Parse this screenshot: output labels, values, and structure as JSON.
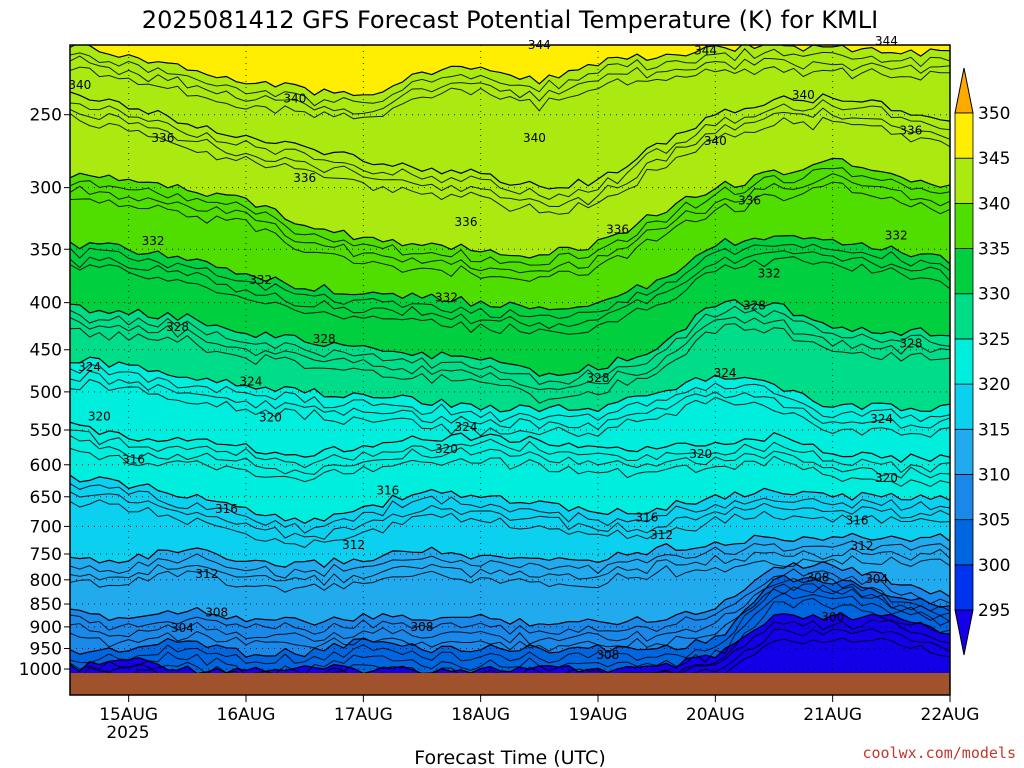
{
  "chart_data": {
    "type": "heatmap",
    "title": "2025081412 GFS Forecast Potential Temperature (K) for KMLI",
    "xlabel": "Forecast Time (UTC)",
    "ylabel": "",
    "y_scale": "log-pressure",
    "y_axis": {
      "ticks": [
        250,
        300,
        350,
        400,
        450,
        500,
        550,
        600,
        650,
        700,
        750,
        800,
        850,
        900,
        950,
        1000
      ],
      "range": [
        210,
        1010
      ],
      "inverted": true
    },
    "x_axis": {
      "ticks": [
        "15AUG",
        "16AUG",
        "17AUG",
        "18AUG",
        "19AUG",
        "20AUG",
        "21AUG",
        "22AUG"
      ],
      "year_label": "2025",
      "range_hours": [
        -12,
        168
      ]
    },
    "colorbar": {
      "labels": [
        295,
        300,
        305,
        310,
        315,
        320,
        325,
        330,
        335,
        340,
        345,
        350
      ],
      "colors": [
        "#1400e8",
        "#0033ee",
        "#0066e0",
        "#1a88e8",
        "#22aaee",
        "#0cd0f0",
        "#00eedd",
        "#00dd88",
        "#00d040",
        "#50dd00",
        "#aaea10",
        "#ffee00",
        "#ffaa00"
      ]
    },
    "times_hours": [
      -12,
      0,
      12,
      24,
      36,
      48,
      60,
      72,
      84,
      96,
      108,
      120,
      132,
      144,
      156,
      168
    ],
    "contour_levels": [
      300,
      304,
      308,
      312,
      316,
      320,
      324,
      328,
      332,
      336,
      340,
      344
    ],
    "contour_pressure_hpa": {
      "300": [
        1000,
        975,
        1000,
        1000,
        1000,
        1000,
        1000,
        1000,
        1000,
        1000,
        1000,
        970,
        880,
        880,
        880,
        910
      ],
      "304": [
        960,
        950,
        930,
        960,
        960,
        930,
        950,
        950,
        950,
        950,
        950,
        930,
        800,
        800,
        830,
        860
      ],
      "308": [
        870,
        880,
        860,
        880,
        890,
        880,
        880,
        880,
        890,
        890,
        880,
        860,
        770,
        770,
        800,
        830
      ],
      "312": [
        760,
        760,
        740,
        770,
        770,
        760,
        740,
        760,
        760,
        760,
        740,
        730,
        720,
        720,
        720,
        720
      ],
      "316": [
        620,
        630,
        650,
        670,
        690,
        670,
        640,
        650,
        660,
        680,
        670,
        650,
        640,
        650,
        650,
        650
      ],
      "320": [
        545,
        560,
        560,
        575,
        585,
        570,
        560,
        560,
        565,
        575,
        580,
        565,
        560,
        580,
        590,
        590
      ],
      "324": [
        460,
        470,
        480,
        490,
        500,
        505,
        510,
        520,
        520,
        520,
        500,
        480,
        490,
        520,
        520,
        520
      ],
      "328": [
        405,
        410,
        415,
        430,
        440,
        450,
        455,
        460,
        480,
        470,
        450,
        400,
        400,
        430,
        430,
        430
      ],
      "332": [
        345,
        350,
        360,
        370,
        385,
        390,
        395,
        400,
        405,
        400,
        380,
        345,
        340,
        345,
        350,
        360
      ],
      "336": [
        290,
        295,
        300,
        310,
        330,
        340,
        345,
        350,
        355,
        345,
        320,
        300,
        290,
        280,
        290,
        300
      ],
      "340": [
        235,
        245,
        255,
        265,
        270,
        280,
        285,
        290,
        300,
        295,
        270,
        250,
        240,
        240,
        245,
        255
      ],
      "344": [
        210,
        215,
        222,
        230,
        235,
        238,
        225,
        220,
        230,
        220,
        215,
        212,
        210,
        212,
        212,
        215
      ]
    },
    "contour_labels": [
      {
        "text": "340",
        "t": -10.0,
        "p": 232
      },
      {
        "text": "344",
        "t": 84.0,
        "p": 210
      },
      {
        "text": "344",
        "t": 118.0,
        "p": 213
      },
      {
        "text": "344",
        "t": 155.0,
        "p": 208
      },
      {
        "text": "340",
        "t": 34.0,
        "p": 240
      },
      {
        "text": "340",
        "t": 138.0,
        "p": 238
      },
      {
        "text": "336",
        "t": 7.0,
        "p": 265
      },
      {
        "text": "340",
        "t": 83.0,
        "p": 265
      },
      {
        "text": "340",
        "t": 120.0,
        "p": 267
      },
      {
        "text": "336",
        "t": 160.0,
        "p": 260
      },
      {
        "text": "336",
        "t": 36.0,
        "p": 293
      },
      {
        "text": "336",
        "t": 127.0,
        "p": 310
      },
      {
        "text": "336",
        "t": 69.0,
        "p": 327
      },
      {
        "text": "336",
        "t": 100.0,
        "p": 333
      },
      {
        "text": "332",
        "t": 157.0,
        "p": 338
      },
      {
        "text": "332",
        "t": 5.0,
        "p": 343
      },
      {
        "text": "332",
        "t": 131.0,
        "p": 372
      },
      {
        "text": "332",
        "t": 27.0,
        "p": 378
      },
      {
        "text": "332",
        "t": 65.0,
        "p": 395
      },
      {
        "text": "328",
        "t": 128.0,
        "p": 403
      },
      {
        "text": "328",
        "t": 10.0,
        "p": 425
      },
      {
        "text": "328",
        "t": 40.0,
        "p": 438
      },
      {
        "text": "328",
        "t": 160.0,
        "p": 443
      },
      {
        "text": "324",
        "t": -8.0,
        "p": 470
      },
      {
        "text": "328",
        "t": 96.0,
        "p": 483
      },
      {
        "text": "324",
        "t": 25.0,
        "p": 487
      },
      {
        "text": "324",
        "t": 122.0,
        "p": 477
      },
      {
        "text": "320",
        "t": -6.0,
        "p": 532
      },
      {
        "text": "320",
        "t": 29.0,
        "p": 533
      },
      {
        "text": "324",
        "t": 154.0,
        "p": 535
      },
      {
        "text": "324",
        "t": 69.0,
        "p": 546
      },
      {
        "text": "320",
        "t": 65.0,
        "p": 577
      },
      {
        "text": "320",
        "t": 117.0,
        "p": 584
      },
      {
        "text": "316",
        "t": 1.0,
        "p": 592
      },
      {
        "text": "320",
        "t": 155.0,
        "p": 620
      },
      {
        "text": "316",
        "t": 53.0,
        "p": 640
      },
      {
        "text": "316",
        "t": 20.0,
        "p": 670
      },
      {
        "text": "316",
        "t": 106.0,
        "p": 685
      },
      {
        "text": "316",
        "t": 149.0,
        "p": 690
      },
      {
        "text": "312",
        "t": 109.0,
        "p": 715
      },
      {
        "text": "312",
        "t": 46.0,
        "p": 733
      },
      {
        "text": "312",
        "t": 150.0,
        "p": 735
      },
      {
        "text": "312",
        "t": 16.0,
        "p": 788
      },
      {
        "text": "308",
        "t": 141.0,
        "p": 795
      },
      {
        "text": "304",
        "t": 153.0,
        "p": 798
      },
      {
        "text": "308",
        "t": 18.0,
        "p": 868
      },
      {
        "text": "308",
        "t": 60.0,
        "p": 900
      },
      {
        "text": "304",
        "t": 11.0,
        "p": 902
      },
      {
        "text": "300",
        "t": 144.0,
        "p": 878
      },
      {
        "text": "308",
        "t": 98.0,
        "p": 965
      }
    ]
  },
  "credit": "coolwx.com/models"
}
